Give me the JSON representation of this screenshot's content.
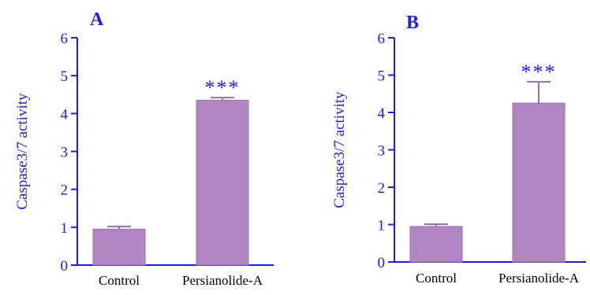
{
  "colors": {
    "axis": "#1a1aff",
    "bar_fill": "#b086c2",
    "bar_stroke": "#9c6fb3",
    "text_blue": "#1a1aff",
    "text_black": "#000000"
  },
  "chart_data": [
    {
      "type": "bar",
      "panel_label": "A",
      "categories": [
        "Control",
        "Persianolide-A"
      ],
      "values": [
        0.95,
        4.35
      ],
      "errors": [
        0.07,
        0.07
      ],
      "significance": [
        "",
        "***"
      ],
      "title": "",
      "xlabel": "",
      "ylabel": "Caspase3/7 activity",
      "ylim": [
        0,
        6
      ],
      "yticks": [
        0,
        1,
        2,
        3,
        4,
        5,
        6
      ],
      "grid": false,
      "legend": "none"
    },
    {
      "type": "bar",
      "panel_label": "B",
      "categories": [
        "Control",
        "Persianolide-A"
      ],
      "values": [
        0.95,
        4.25
      ],
      "errors": [
        0.06,
        0.57
      ],
      "significance": [
        "",
        "***"
      ],
      "title": "",
      "xlabel": "",
      "ylabel": "Caspase3/7 activity",
      "ylim": [
        0,
        6
      ],
      "yticks": [
        0,
        1,
        2,
        3,
        4,
        5,
        6
      ],
      "grid": false,
      "legend": "none"
    }
  ]
}
